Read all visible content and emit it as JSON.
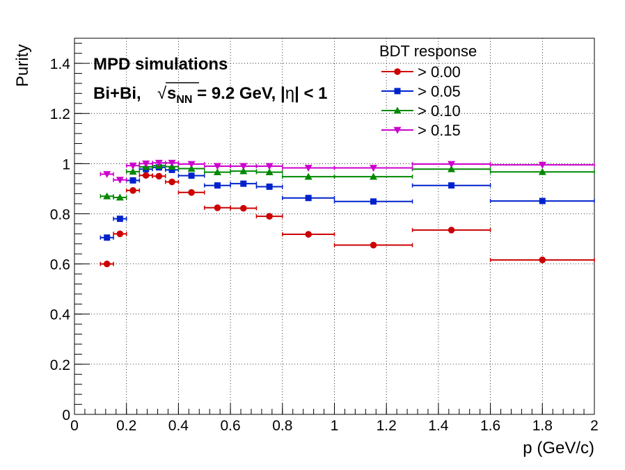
{
  "chart_data": {
    "type": "scatter",
    "xlabel": "p (GeV/c)",
    "ylabel": "Purity",
    "xlim": [
      0,
      2
    ],
    "ylim": [
      0,
      1.5
    ],
    "grid": true,
    "x_ticks": [
      0,
      0.2,
      0.4,
      0.6,
      0.8,
      1,
      1.2,
      1.4,
      1.6,
      1.8,
      2
    ],
    "x_tick_labels": [
      "0",
      "0.2",
      "0.4",
      "0.6",
      "0.8",
      "1",
      "1.2",
      "1.4",
      "1.6",
      "1.8",
      "2"
    ],
    "y_ticks": [
      0,
      0.2,
      0.4,
      0.6,
      0.8,
      1,
      1.2,
      1.4
    ],
    "y_tick_labels": [
      "0",
      "0.2",
      "0.4",
      "0.6",
      "0.8",
      "1",
      "1.2",
      "1.4"
    ],
    "annotations": {
      "line1": "MPD simulations",
      "line2_prefix": "Bi+Bi,",
      "sqrt_symbol": "√",
      "s_text": "s",
      "nn_subscript": "NN",
      "line2_middle": " = 9.2 GeV, |",
      "eta": "η",
      "line2_suffix": "| < 1"
    },
    "legend": {
      "title": "BDT response",
      "position": "top-right"
    },
    "series": [
      {
        "name": "> 0.00",
        "color": "#cc0000",
        "marker": "circle",
        "points": [
          {
            "x": 0.125,
            "xerr": 0.025,
            "y": 0.6
          },
          {
            "x": 0.175,
            "xerr": 0.025,
            "y": 0.72
          },
          {
            "x": 0.225,
            "xerr": 0.025,
            "y": 0.893
          },
          {
            "x": 0.275,
            "xerr": 0.025,
            "y": 0.953
          },
          {
            "x": 0.325,
            "xerr": 0.025,
            "y": 0.95
          },
          {
            "x": 0.375,
            "xerr": 0.025,
            "y": 0.927
          },
          {
            "x": 0.45,
            "xerr": 0.05,
            "y": 0.885
          },
          {
            "x": 0.55,
            "xerr": 0.05,
            "y": 0.824
          },
          {
            "x": 0.65,
            "xerr": 0.05,
            "y": 0.822
          },
          {
            "x": 0.75,
            "xerr": 0.05,
            "y": 0.79
          },
          {
            "x": 0.9,
            "xerr": 0.1,
            "y": 0.718
          },
          {
            "x": 1.15,
            "xerr": 0.15,
            "y": 0.675
          },
          {
            "x": 1.45,
            "xerr": 0.15,
            "y": 0.735
          },
          {
            "x": 1.8,
            "xerr": 0.2,
            "y": 0.616
          }
        ]
      },
      {
        "name": "> 0.05",
        "color": "#0022cc",
        "marker": "square",
        "points": [
          {
            "x": 0.125,
            "xerr": 0.025,
            "y": 0.705
          },
          {
            "x": 0.175,
            "xerr": 0.025,
            "y": 0.78
          },
          {
            "x": 0.225,
            "xerr": 0.025,
            "y": 0.933
          },
          {
            "x": 0.275,
            "xerr": 0.025,
            "y": 0.978
          },
          {
            "x": 0.325,
            "xerr": 0.025,
            "y": 0.985
          },
          {
            "x": 0.375,
            "xerr": 0.025,
            "y": 0.975
          },
          {
            "x": 0.45,
            "xerr": 0.05,
            "y": 0.952
          },
          {
            "x": 0.55,
            "xerr": 0.05,
            "y": 0.913
          },
          {
            "x": 0.65,
            "xerr": 0.05,
            "y": 0.92
          },
          {
            "x": 0.75,
            "xerr": 0.05,
            "y": 0.908
          },
          {
            "x": 0.9,
            "xerr": 0.1,
            "y": 0.863
          },
          {
            "x": 1.15,
            "xerr": 0.15,
            "y": 0.849
          },
          {
            "x": 1.45,
            "xerr": 0.15,
            "y": 0.913
          },
          {
            "x": 1.8,
            "xerr": 0.2,
            "y": 0.851
          }
        ]
      },
      {
        "name": "> 0.10",
        "color": "#008800",
        "marker": "triangle-up",
        "points": [
          {
            "x": 0.125,
            "xerr": 0.025,
            "y": 0.87
          },
          {
            "x": 0.175,
            "xerr": 0.025,
            "y": 0.865
          },
          {
            "x": 0.225,
            "xerr": 0.025,
            "y": 0.968
          },
          {
            "x": 0.275,
            "xerr": 0.025,
            "y": 0.987
          },
          {
            "x": 0.325,
            "xerr": 0.025,
            "y": 0.992
          },
          {
            "x": 0.375,
            "xerr": 0.025,
            "y": 0.988
          },
          {
            "x": 0.45,
            "xerr": 0.05,
            "y": 0.98
          },
          {
            "x": 0.55,
            "xerr": 0.05,
            "y": 0.966
          },
          {
            "x": 0.65,
            "xerr": 0.05,
            "y": 0.97
          },
          {
            "x": 0.75,
            "xerr": 0.05,
            "y": 0.966
          },
          {
            "x": 0.9,
            "xerr": 0.1,
            "y": 0.948
          },
          {
            "x": 1.15,
            "xerr": 0.15,
            "y": 0.948
          },
          {
            "x": 1.45,
            "xerr": 0.15,
            "y": 0.978
          },
          {
            "x": 1.8,
            "xerr": 0.2,
            "y": 0.967
          }
        ]
      },
      {
        "name": "> 0.15",
        "color": "#cc00cc",
        "marker": "triangle-down",
        "points": [
          {
            "x": 0.125,
            "xerr": 0.025,
            "y": 0.958
          },
          {
            "x": 0.175,
            "xerr": 0.025,
            "y": 0.935
          },
          {
            "x": 0.225,
            "xerr": 0.025,
            "y": 0.992
          },
          {
            "x": 0.275,
            "xerr": 0.025,
            "y": 1.0
          },
          {
            "x": 0.325,
            "xerr": 0.025,
            "y": 1.003
          },
          {
            "x": 0.375,
            "xerr": 0.025,
            "y": 1.003
          },
          {
            "x": 0.45,
            "xerr": 0.05,
            "y": 0.998
          },
          {
            "x": 0.55,
            "xerr": 0.05,
            "y": 0.99
          },
          {
            "x": 0.65,
            "xerr": 0.05,
            "y": 0.99
          },
          {
            "x": 0.75,
            "xerr": 0.05,
            "y": 0.99
          },
          {
            "x": 0.9,
            "xerr": 0.1,
            "y": 0.983
          },
          {
            "x": 1.15,
            "xerr": 0.15,
            "y": 0.983
          },
          {
            "x": 1.45,
            "xerr": 0.15,
            "y": 0.998
          },
          {
            "x": 1.8,
            "xerr": 0.2,
            "y": 0.995
          }
        ]
      }
    ]
  }
}
